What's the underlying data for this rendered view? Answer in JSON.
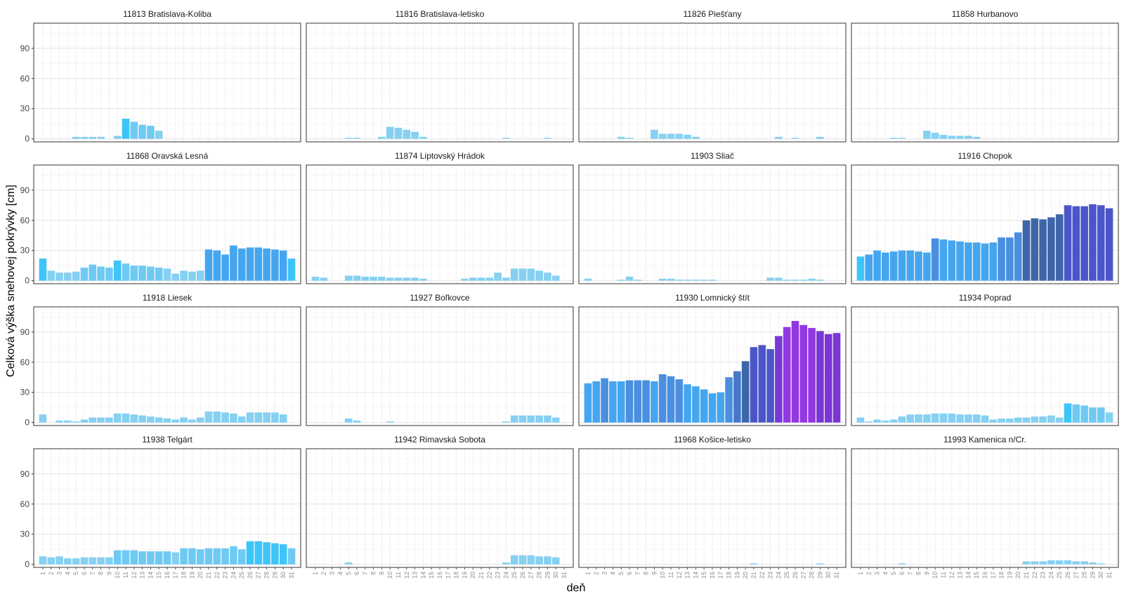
{
  "chart_data": {
    "type": "bar",
    "facet_layout": "4x4 grid, shared y axis",
    "ylabel": "Celková výška snehovej pokrývky [cm]",
    "xlabel": "deň",
    "ylim": [
      -3,
      115
    ],
    "yticks": [
      0,
      30,
      60,
      90
    ],
    "x": [
      1,
      2,
      3,
      4,
      5,
      6,
      7,
      8,
      9,
      10,
      11,
      12,
      13,
      14,
      15,
      16,
      17,
      18,
      19,
      20,
      21,
      22,
      23,
      24,
      25,
      26,
      27,
      28,
      29,
      30,
      31
    ],
    "grid": true,
    "fill_scale": "value-dependent gradient, light blue (low) to violet (high)",
    "panels": [
      {
        "name": "11813 Bratislava-Koliba",
        "values": [
          0,
          0,
          0,
          0,
          2,
          2,
          2,
          2,
          0,
          3,
          20,
          17,
          14,
          13,
          8,
          0,
          0,
          0,
          0,
          0,
          0,
          0,
          0,
          0,
          0,
          0,
          0,
          0,
          0,
          0,
          0
        ]
      },
      {
        "name": "11816 Bratislava-letisko",
        "values": [
          0,
          0,
          0,
          0,
          1,
          1,
          0,
          0,
          2,
          12,
          11,
          9,
          7,
          2,
          0,
          0,
          0,
          0,
          0,
          0,
          0,
          0,
          0,
          1,
          0,
          0,
          0,
          0,
          1,
          0,
          0
        ]
      },
      {
        "name": "11826 Piešťany",
        "values": [
          0,
          0,
          0,
          0,
          2,
          1,
          0,
          0,
          9,
          5,
          5,
          5,
          4,
          2,
          0,
          0,
          0,
          0,
          0,
          0,
          0,
          0,
          0,
          2,
          0,
          1,
          0,
          0,
          2,
          0,
          0
        ]
      },
      {
        "name": "11858 Hurbanovo",
        "values": [
          0,
          0,
          0,
          0,
          1,
          1,
          0,
          0,
          8,
          6,
          4,
          3,
          3,
          3,
          2,
          0,
          0,
          0,
          0,
          0,
          0,
          0,
          0,
          0,
          0,
          0,
          0,
          0,
          0,
          0,
          0
        ]
      },
      {
        "name": "11868 Oravská Lesná",
        "values": [
          22,
          10,
          8,
          8,
          9,
          13,
          16,
          14,
          13,
          20,
          17,
          15,
          15,
          14,
          13,
          12,
          7,
          10,
          9,
          10,
          31,
          30,
          26,
          35,
          32,
          33,
          33,
          32,
          31,
          30,
          22
        ]
      },
      {
        "name": "11874 Liptovský Hrádok",
        "values": [
          4,
          3,
          0,
          0,
          5,
          5,
          4,
          4,
          4,
          3,
          3,
          3,
          3,
          2,
          0,
          0,
          0,
          0,
          2,
          3,
          3,
          3,
          8,
          3,
          12,
          12,
          12,
          10,
          8,
          5,
          0
        ]
      },
      {
        "name": "11903 Sliač",
        "values": [
          2,
          0,
          0,
          0,
          1,
          4,
          1,
          0,
          0,
          2,
          2,
          1,
          1,
          1,
          1,
          1,
          0,
          0,
          0,
          0,
          0,
          0,
          3,
          3,
          1,
          1,
          1,
          2,
          1,
          0,
          0
        ]
      },
      {
        "name": "11916 Chopok",
        "values": [
          24,
          26,
          30,
          28,
          29,
          30,
          30,
          29,
          28,
          42,
          41,
          40,
          39,
          38,
          38,
          37,
          38,
          43,
          43,
          48,
          60,
          62,
          61,
          63,
          66,
          75,
          74,
          74,
          76,
          75,
          72
        ]
      },
      {
        "name": "11918 Liesek",
        "values": [
          8,
          0,
          2,
          2,
          1,
          3,
          5,
          5,
          5,
          9,
          9,
          8,
          7,
          6,
          5,
          4,
          3,
          5,
          3,
          5,
          11,
          11,
          10,
          9,
          6,
          10,
          10,
          10,
          10,
          8,
          0
        ]
      },
      {
        "name": "11927 Boľkovce",
        "values": [
          0,
          0,
          0,
          0,
          4,
          2,
          0,
          0,
          0,
          1,
          0,
          0,
          0,
          0,
          0,
          0,
          0,
          0,
          0,
          0,
          0,
          0,
          0,
          1,
          7,
          7,
          7,
          7,
          7,
          5,
          0
        ]
      },
      {
        "name": "11930 Lomnický štít",
        "values": [
          39,
          41,
          44,
          41,
          41,
          42,
          42,
          42,
          41,
          48,
          46,
          43,
          38,
          36,
          33,
          29,
          30,
          45,
          51,
          61,
          75,
          77,
          73,
          86,
          95,
          101,
          97,
          94,
          91,
          88,
          89
        ]
      },
      {
        "name": "11934 Poprad",
        "values": [
          5,
          1,
          3,
          2,
          3,
          6,
          8,
          8,
          8,
          9,
          9,
          9,
          8,
          8,
          8,
          7,
          3,
          4,
          4,
          5,
          5,
          6,
          6,
          7,
          5,
          19,
          18,
          17,
          15,
          15,
          10
        ]
      },
      {
        "name": "11938 Telgárt",
        "values": [
          8,
          7,
          8,
          6,
          6,
          7,
          7,
          7,
          7,
          14,
          14,
          14,
          13,
          13,
          13,
          13,
          12,
          16,
          16,
          15,
          16,
          16,
          16,
          18,
          15,
          23,
          23,
          22,
          21,
          20,
          16
        ]
      },
      {
        "name": "11942 Rimavská Sobota",
        "values": [
          0,
          0,
          0,
          0,
          2,
          0,
          0,
          0,
          0,
          0,
          0,
          0,
          0,
          0,
          0,
          0,
          0,
          0,
          0,
          0,
          0,
          0,
          0,
          2,
          9,
          9,
          9,
          8,
          8,
          7,
          0
        ]
      },
      {
        "name": "11968 Košice-letisko",
        "values": [
          0,
          0,
          0,
          0,
          0,
          0,
          0,
          0,
          0,
          0,
          0,
          0,
          0,
          0,
          0,
          0,
          0,
          0,
          0,
          0,
          1,
          0,
          0,
          0,
          0,
          0,
          0,
          0,
          1,
          0,
          0
        ]
      },
      {
        "name": "11993 Kamenica n/Cr.",
        "values": [
          0,
          0,
          0,
          0,
          0,
          1,
          0,
          0,
          0,
          0,
          0,
          0,
          0,
          0,
          0,
          0,
          0,
          0,
          0,
          0,
          3,
          3,
          3,
          4,
          4,
          4,
          3,
          3,
          2,
          1,
          0
        ]
      }
    ]
  }
}
